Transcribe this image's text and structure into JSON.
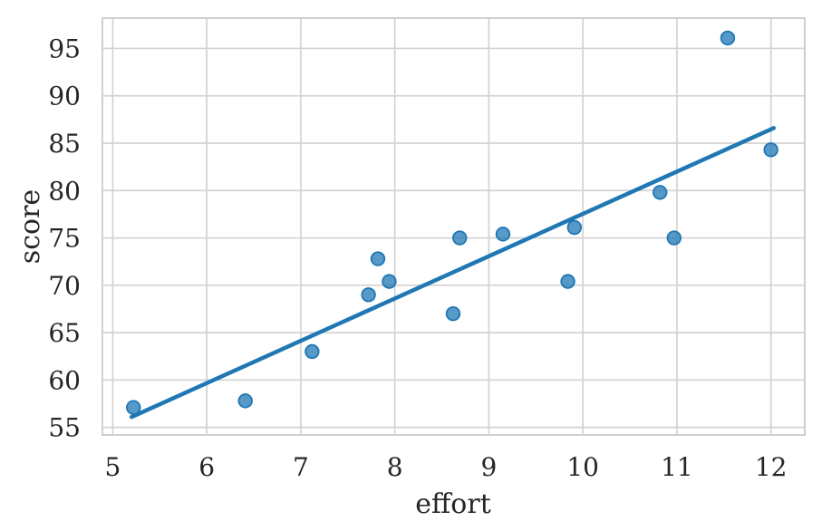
{
  "chart_data": {
    "type": "scatter",
    "title": "",
    "xlabel": "effort",
    "ylabel": "score",
    "x_ticks": [
      5,
      6,
      7,
      8,
      9,
      10,
      11,
      12
    ],
    "y_ticks": [
      55,
      60,
      65,
      70,
      75,
      80,
      85,
      90,
      95
    ],
    "xlim": [
      4.89,
      12.36
    ],
    "ylim": [
      54.2,
      98.2
    ],
    "grid": true,
    "legend": false,
    "points": [
      {
        "x": 5.22,
        "y": 57.1
      },
      {
        "x": 6.41,
        "y": 57.8
      },
      {
        "x": 7.12,
        "y": 63.0
      },
      {
        "x": 7.72,
        "y": 69.0
      },
      {
        "x": 7.82,
        "y": 72.8
      },
      {
        "x": 7.94,
        "y": 70.4
      },
      {
        "x": 8.62,
        "y": 67.0
      },
      {
        "x": 8.69,
        "y": 75.0
      },
      {
        "x": 9.15,
        "y": 75.4
      },
      {
        "x": 9.84,
        "y": 70.4
      },
      {
        "x": 9.91,
        "y": 76.1
      },
      {
        "x": 10.82,
        "y": 79.8
      },
      {
        "x": 10.97,
        "y": 75.0
      },
      {
        "x": 11.54,
        "y": 96.1
      },
      {
        "x": 12.0,
        "y": 84.3
      }
    ],
    "regression_line": {
      "x_start": 5.2,
      "y_start": 56.1,
      "x_end": 12.03,
      "y_end": 86.6
    },
    "colors": {
      "marker_edge": "#1f77b4",
      "marker_fill": "#1f77b4",
      "marker_fill_opacity": 0.75,
      "line": "#1f77b4",
      "grid": "#d3d3d3",
      "spine": "#cfcfcf",
      "text": "#262626",
      "background": "#ffffff"
    }
  }
}
